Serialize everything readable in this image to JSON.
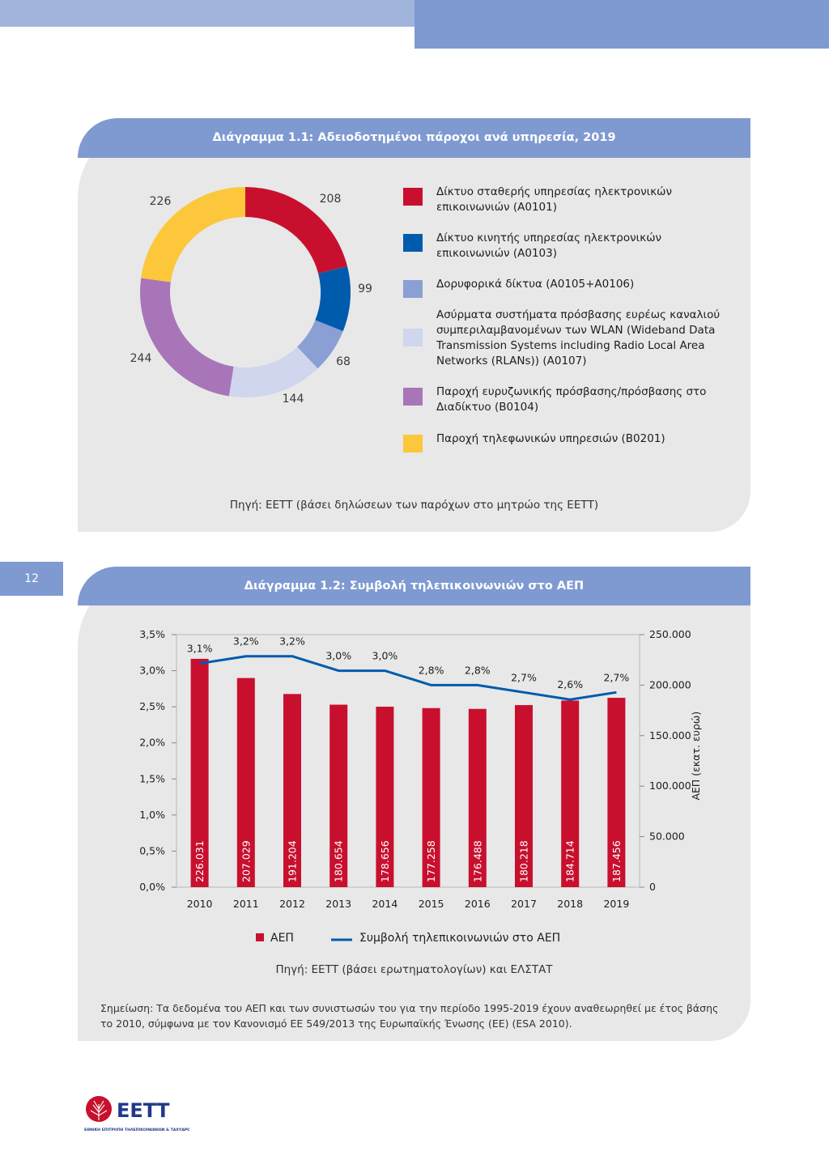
{
  "chart1": {
    "title": "Διάγραμμα 1.1: Αδειοδοτημένοι πάροχοι ανά υπηρεσία, 2019",
    "source": "Πηγή: ΕΕΤΤ (βάσει δηλώσεων των παρόχων στο μητρώο της ΕΕΤΤ)"
  },
  "chart2": {
    "title": "Διάγραμμα 1.2: Συμβολή τηλεπικοινωνιών στο ΑΕΠ",
    "source": "Πηγή: ΕΕΤΤ (βάσει ερωτηματολογίων) και ΕΛΣΤΑΤ",
    "note": "Σημείωση: Τα δεδομένα του ΑΕΠ και των συνιστωσών του για την περίοδο 1995-2019 έχουν αναθεωρηθεί με έτος βάσης το 2010, σύμφωνα με τον Κανονισμό ΕΕ 549/2013 της Ευρωπαϊκής Ένωσης (ΕΕ) (ESA 2010)."
  },
  "page_number": "12",
  "logo": {
    "text": "ΕΕΤΤ",
    "subtitle": "ΕΘΝΙΚΗ ΕΠΙΤΡΟΠΗ ΤΗΛΕΠΙΚΟΙΝΩΝΙΩΝ & ΤΑΧΥΔΡΟΜΕΙΩΝ"
  },
  "chart_data": [
    {
      "type": "pie",
      "labels": [
        "Δίκτυο σταθερής υπηρεσίας ηλεκτρονικών επικοινωνιών (Α0101)",
        "Δίκτυο κινητής υπηρεσίας ηλεκτρονικών επικοινωνιών (Α0103)",
        "Δορυφορικά δίκτυα (Α0105+Α0106)",
        "Ασύρματα συστήματα πρόσβασης ευρέως καναλιού συμπεριλαμβανομένων των WLAN (Wideband Data Transmission Systems including Radio Local Area Networks (RLANs)) (Α0107)",
        "Παροχή ευρυζωνικής πρόσβασης/πρόσβασης στο Διαδίκτυο (Β0104)",
        "Παροχή τηλεφωνικών υπηρεσιών (Β0201)"
      ],
      "values": [
        208,
        99,
        68,
        144,
        244,
        226
      ],
      "colors": [
        "#c8102e",
        "#005bac",
        "#8a9fd3",
        "#cfd6ee",
        "#a876b8",
        "#fcc73b"
      ],
      "legend": "right"
    },
    {
      "type": "bar",
      "categories": [
        "2010",
        "2011",
        "2012",
        "2013",
        "2014",
        "2015",
        "2016",
        "2017",
        "2018",
        "2019"
      ],
      "series": [
        {
          "name": "ΑΕΠ",
          "type": "bar",
          "axis": "right",
          "values": [
            226031,
            207029,
            191204,
            180654,
            178656,
            177258,
            176488,
            180218,
            184714,
            187456
          ],
          "labels": [
            "226.031",
            "207.029",
            "191.204",
            "180.654",
            "178.656",
            "177.258",
            "176.488",
            "180.218",
            "184.714",
            "187.456"
          ],
          "color": "#c8102e"
        },
        {
          "name": "Συμβολή τηλεπικοινωνιών στο ΑΕΠ",
          "type": "line",
          "axis": "left",
          "values": [
            3.1,
            3.2,
            3.2,
            3.0,
            3.0,
            2.8,
            2.8,
            2.7,
            2.6,
            2.7
          ],
          "labels": [
            "3,1%",
            "3,2%",
            "3,2%",
            "3,0%",
            "3,0%",
            "2,8%",
            "2,8%",
            "2,7%",
            "2,6%",
            "2,7%"
          ],
          "color": "#005bac"
        }
      ],
      "y_left": {
        "ticks": [
          "0,0%",
          "0,5%",
          "1,0%",
          "1,5%",
          "2,0%",
          "2,5%",
          "3,0%",
          "3,5%"
        ],
        "lim": [
          0,
          3.5
        ]
      },
      "y_right": {
        "ticks": [
          "0",
          "50.000",
          "100.000",
          "150.000",
          "200.000",
          "250.000"
        ],
        "lim": [
          0,
          250000
        ],
        "label": "ΑΕΠ (εκατ. ευρώ)"
      },
      "legend": "bottom"
    }
  ]
}
